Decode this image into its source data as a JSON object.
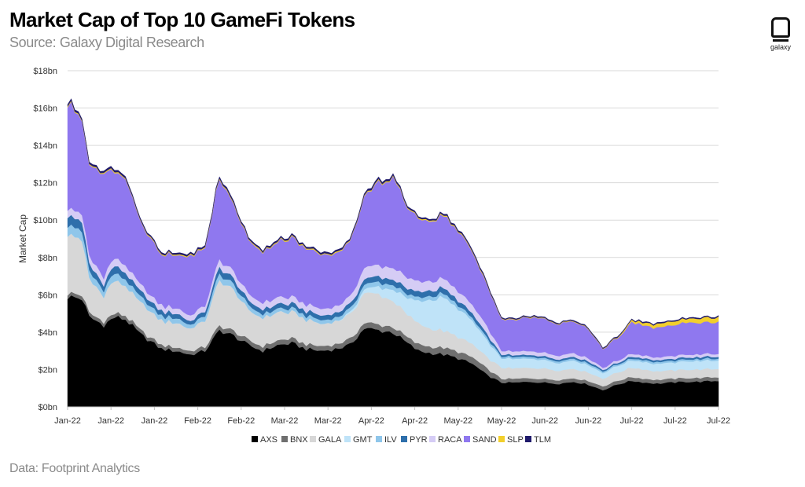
{
  "header": {
    "title": "Market Cap of Top 10 GameFi Tokens",
    "subtitle": "Source: Galaxy Digital Research"
  },
  "logo": {
    "text": "galaxy",
    "icon": "galaxy-logo-icon"
  },
  "footer": {
    "text": "Data: Footprint Analytics"
  },
  "chart_data": {
    "type": "area",
    "stacked": true,
    "title": "Market Cap of Top 10 GameFi Tokens",
    "ylabel": "Market Cap",
    "xlabel": "",
    "ylim": [
      0,
      18
    ],
    "y_unit": "bn",
    "y_ticks": [
      "$0bn",
      "$2bn",
      "$4bn",
      "$6bn",
      "$8bn",
      "$10bn",
      "$12bn",
      "$14bn",
      "$16bn",
      "$18bn"
    ],
    "x_ticks": [
      "Jan-22",
      "Jan-22",
      "Jan-22",
      "Feb-22",
      "Feb-22",
      "Mar-22",
      "Mar-22",
      "Apr-22",
      "Apr-22",
      "May-22",
      "May-22",
      "Jun-22",
      "Jun-22",
      "Jul-22",
      "Jul-22",
      "Jul-22"
    ],
    "grid": true,
    "legend_position": "bottom",
    "key_points": [
      0,
      4,
      6,
      10,
      13,
      16,
      20,
      26,
      30,
      34,
      38,
      42,
      46,
      50,
      54,
      58,
      62,
      66,
      70,
      74,
      78,
      82,
      86,
      90,
      94,
      97,
      100,
      104,
      108,
      112,
      116,
      120,
      124,
      128,
      132,
      136,
      140,
      144,
      148,
      152,
      156,
      160,
      163,
      167,
      171,
      175,
      180
    ],
    "series": [
      {
        "name": "AXS",
        "color": "#000000",
        "values": [
          5.9,
          5.8,
          4.8,
          4.4,
          4.8,
          4.7,
          3.9,
          3.1,
          3.0,
          2.8,
          3.0,
          4.1,
          3.8,
          3.3,
          3.0,
          3.3,
          3.4,
          3.1,
          3.0,
          3.1,
          3.3,
          4.2,
          4.1,
          4.0,
          3.4,
          3.0,
          2.9,
          2.8,
          2.6,
          2.3,
          1.7,
          1.3,
          1.3,
          1.35,
          1.3,
          1.25,
          1.35,
          1.2,
          0.9,
          1.2,
          1.4,
          1.3,
          1.25,
          1.3,
          1.35,
          1.35,
          1.4
        ]
      },
      {
        "name": "BNX",
        "color": "#6f6f6f",
        "values": [
          0.2,
          0.2,
          0.2,
          0.2,
          0.2,
          0.2,
          0.2,
          0.2,
          0.2,
          0.2,
          0.2,
          0.25,
          0.25,
          0.25,
          0.25,
          0.25,
          0.25,
          0.25,
          0.25,
          0.25,
          0.3,
          0.3,
          0.3,
          0.3,
          0.3,
          0.35,
          0.35,
          0.35,
          0.35,
          0.35,
          0.35,
          0.2,
          0.2,
          0.2,
          0.2,
          0.2,
          0.2,
          0.2,
          0.2,
          0.2,
          0.2,
          0.2,
          0.2,
          0.2,
          0.2,
          0.2,
          0.2
        ]
      },
      {
        "name": "GALA",
        "color": "#d7d7d7",
        "values": [
          3.2,
          2.9,
          1.8,
          1.4,
          1.8,
          1.6,
          1.5,
          1.3,
          1.3,
          1.2,
          1.4,
          2.5,
          2.2,
          1.6,
          1.5,
          1.5,
          1.4,
          1.3,
          1.2,
          1.2,
          1.3,
          1.6,
          1.6,
          1.4,
          1.2,
          1.1,
          1.0,
          0.9,
          0.8,
          0.7,
          0.6,
          0.6,
          0.55,
          0.55,
          0.55,
          0.5,
          0.5,
          0.45,
          0.4,
          0.45,
          0.5,
          0.5,
          0.45,
          0.45,
          0.45,
          0.45,
          0.45
        ]
      },
      {
        "name": "GMT",
        "color": "#bfe3f8",
        "values": [
          0,
          0,
          0,
          0,
          0,
          0,
          0,
          0,
          0,
          0,
          0,
          0,
          0,
          0,
          0,
          0,
          0,
          0,
          0,
          0,
          0.1,
          0.2,
          0.4,
          0.6,
          0.9,
          1.2,
          1.5,
          1.8,
          1.5,
          1.2,
          0.9,
          0.5,
          0.5,
          0.5,
          0.45,
          0.4,
          0.45,
          0.4,
          0.3,
          0.35,
          0.4,
          0.4,
          0.4,
          0.4,
          0.45,
          0.45,
          0.45
        ]
      },
      {
        "name": "ILV",
        "color": "#8fc6ea",
        "values": [
          0.5,
          0.5,
          0.4,
          0.3,
          0.4,
          0.35,
          0.3,
          0.25,
          0.25,
          0.2,
          0.25,
          0.35,
          0.3,
          0.25,
          0.2,
          0.2,
          0.2,
          0.2,
          0.2,
          0.2,
          0.2,
          0.25,
          0.25,
          0.25,
          0.2,
          0.2,
          0.2,
          0.2,
          0.2,
          0.15,
          0.15,
          0.1,
          0.1,
          0.1,
          0.1,
          0.1,
          0.1,
          0.1,
          0.08,
          0.08,
          0.1,
          0.1,
          0.1,
          0.1,
          0.1,
          0.1,
          0.1
        ]
      },
      {
        "name": "PYR",
        "color": "#2e6fab",
        "values": [
          0.5,
          0.5,
          0.4,
          0.3,
          0.4,
          0.35,
          0.3,
          0.25,
          0.25,
          0.2,
          0.25,
          0.35,
          0.3,
          0.25,
          0.25,
          0.25,
          0.25,
          0.25,
          0.25,
          0.25,
          0.25,
          0.3,
          0.3,
          0.3,
          0.3,
          0.3,
          0.3,
          0.3,
          0.25,
          0.25,
          0.2,
          0.1,
          0.1,
          0.1,
          0.1,
          0.1,
          0.1,
          0.1,
          0.08,
          0.08,
          0.1,
          0.1,
          0.1,
          0.1,
          0.1,
          0.1,
          0.1
        ]
      },
      {
        "name": "RACA",
        "color": "#d5ccf5",
        "values": [
          0.4,
          0.4,
          0.4,
          0.4,
          0.4,
          0.4,
          0.35,
          0.3,
          0.3,
          0.3,
          0.3,
          0.4,
          0.4,
          0.35,
          0.35,
          0.35,
          0.35,
          0.35,
          0.35,
          0.35,
          0.4,
          0.6,
          0.6,
          0.6,
          0.6,
          0.55,
          0.5,
          0.5,
          0.5,
          0.45,
          0.4,
          0.2,
          0.2,
          0.2,
          0.2,
          0.2,
          0.2,
          0.15,
          0.12,
          0.12,
          0.15,
          0.15,
          0.15,
          0.15,
          0.15,
          0.15,
          0.15
        ]
      },
      {
        "name": "SAND",
        "color": "#8f78ef",
        "values": [
          5.6,
          5.2,
          4.8,
          5.6,
          4.7,
          4.6,
          3.3,
          2.7,
          2.8,
          3.2,
          3.1,
          4.3,
          3.6,
          2.8,
          2.7,
          3.0,
          3.1,
          3.0,
          2.9,
          2.9,
          3.0,
          3.8,
          4.4,
          4.8,
          3.7,
          3.4,
          3.2,
          3.4,
          3.2,
          2.8,
          2.2,
          1.7,
          1.7,
          1.8,
          1.8,
          1.7,
          1.7,
          1.6,
          1.0,
          1.2,
          1.7,
          1.6,
          1.6,
          1.6,
          1.7,
          1.7,
          1.7
        ]
      },
      {
        "name": "SLP",
        "color": "#f2cf2c",
        "values": [
          0.05,
          0.05,
          0.05,
          0.05,
          0.05,
          0.05,
          0.05,
          0.05,
          0.05,
          0.05,
          0.05,
          0.05,
          0.05,
          0.05,
          0.05,
          0.05,
          0.05,
          0.05,
          0.05,
          0.05,
          0.05,
          0.05,
          0.05,
          0.05,
          0.05,
          0.05,
          0.05,
          0.05,
          0.05,
          0.05,
          0.05,
          0.03,
          0.03,
          0.03,
          0.03,
          0.03,
          0.03,
          0.03,
          0.03,
          0.05,
          0.1,
          0.15,
          0.2,
          0.2,
          0.2,
          0.25,
          0.25
        ]
      },
      {
        "name": "TLM",
        "color": "#1f1a6b",
        "values": [
          0.1,
          0.1,
          0.1,
          0.1,
          0.1,
          0.1,
          0.08,
          0.08,
          0.08,
          0.08,
          0.08,
          0.1,
          0.1,
          0.08,
          0.08,
          0.08,
          0.08,
          0.08,
          0.08,
          0.08,
          0.08,
          0.1,
          0.1,
          0.1,
          0.08,
          0.08,
          0.08,
          0.08,
          0.08,
          0.08,
          0.08,
          0.05,
          0.05,
          0.05,
          0.05,
          0.05,
          0.05,
          0.05,
          0.05,
          0.05,
          0.05,
          0.05,
          0.05,
          0.05,
          0.05,
          0.05,
          0.05
        ]
      }
    ]
  }
}
